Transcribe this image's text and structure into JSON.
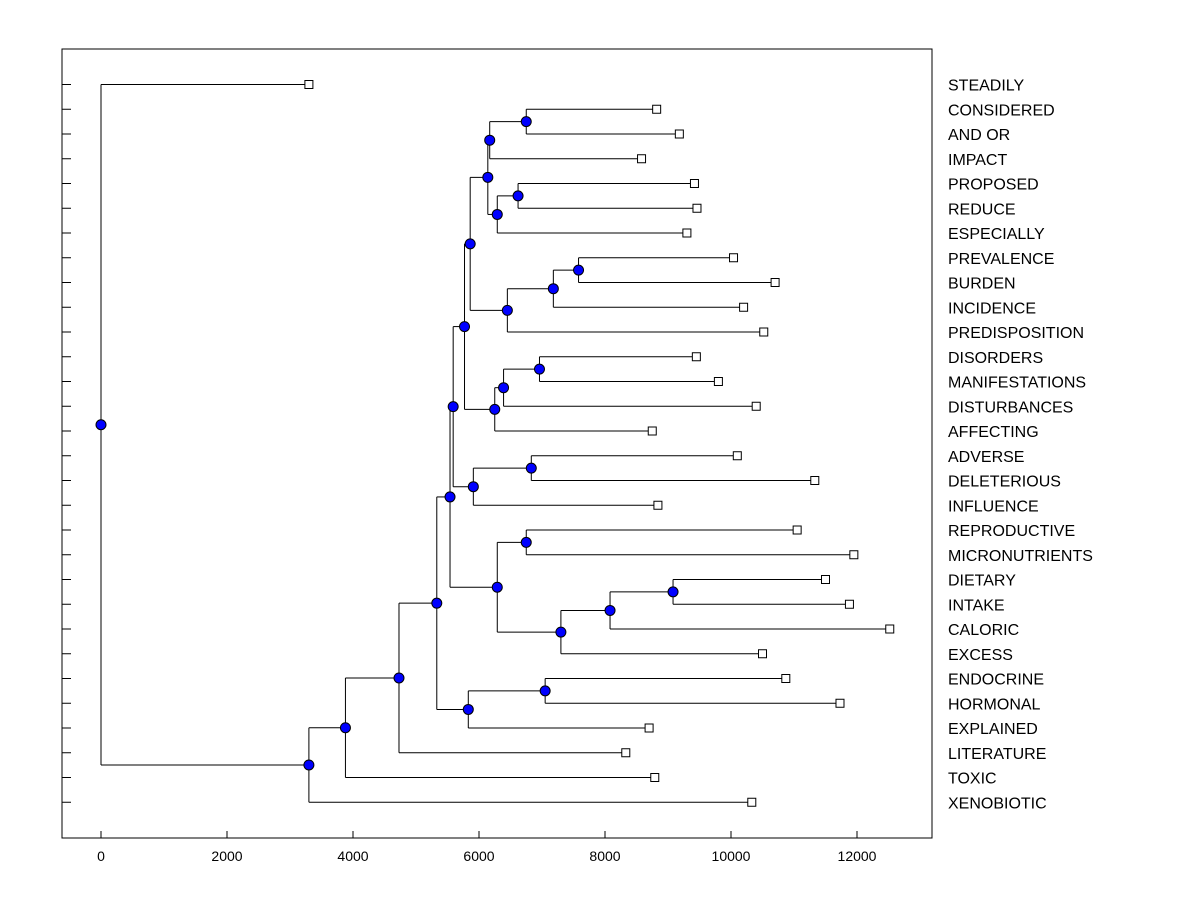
{
  "chart_data": {
    "type": "dendrogram",
    "title": "",
    "xlabel": "",
    "ylabel": "",
    "xlim": [
      -600,
      13100
    ],
    "xticks": [
      0,
      2000,
      4000,
      6000,
      8000,
      10000,
      12000
    ],
    "colors": {
      "node": "#0000ff",
      "line": "#000000",
      "leaf_marker": "#ffffff"
    },
    "leaves": [
      {
        "label": "STEADILY",
        "value": 3300
      },
      {
        "label": "CONSIDERED",
        "value": 8820
      },
      {
        "label": "AND OR",
        "value": 9180
      },
      {
        "label": "IMPACT",
        "value": 8580
      },
      {
        "label": "PROPOSED",
        "value": 9420
      },
      {
        "label": "REDUCE",
        "value": 9460
      },
      {
        "label": "ESPECIALLY",
        "value": 9300
      },
      {
        "label": "PREVALENCE",
        "value": 10040
      },
      {
        "label": "BURDEN",
        "value": 10700
      },
      {
        "label": "INCIDENCE",
        "value": 10200
      },
      {
        "label": "PREDISPOSITION",
        "value": 10520
      },
      {
        "label": "DISORDERS",
        "value": 9450
      },
      {
        "label": "MANIFESTATIONS",
        "value": 9800
      },
      {
        "label": "DISTURBANCES",
        "value": 10400
      },
      {
        "label": "AFFECTING",
        "value": 8750
      },
      {
        "label": "ADVERSE",
        "value": 10100
      },
      {
        "label": "DELETERIOUS",
        "value": 11330
      },
      {
        "label": "INFLUENCE",
        "value": 8840
      },
      {
        "label": "REPRODUCTIVE",
        "value": 11050
      },
      {
        "label": "MICRONUTRIENTS",
        "value": 11950
      },
      {
        "label": "DIETARY",
        "value": 11500
      },
      {
        "label": "INTAKE",
        "value": 11880
      },
      {
        "label": "CALORIC",
        "value": 12520
      },
      {
        "label": "EXCESS",
        "value": 10500
      },
      {
        "label": "ENDOCRINE",
        "value": 10870
      },
      {
        "label": "HORMONAL",
        "value": 11730
      },
      {
        "label": "EXPLAINED",
        "value": 8700
      },
      {
        "label": "LITERATURE",
        "value": 8330
      },
      {
        "label": "TOXIC",
        "value": 8790
      },
      {
        "label": "XENOBIOTIC",
        "value": 10330
      }
    ],
    "merges": [
      {
        "id": "n1",
        "value": 6750,
        "children": [
          "CONSIDERED",
          "AND OR"
        ]
      },
      {
        "id": "n2",
        "value": 6170,
        "children": [
          "n1",
          "IMPACT"
        ]
      },
      {
        "id": "n3",
        "value": 6620,
        "children": [
          "PROPOSED",
          "REDUCE"
        ]
      },
      {
        "id": "n4",
        "value": 6290,
        "children": [
          "n3",
          "ESPECIALLY"
        ]
      },
      {
        "id": "n5",
        "value": 6140,
        "children": [
          "n2",
          "n4"
        ]
      },
      {
        "id": "n6",
        "value": 7580,
        "children": [
          "PREVALENCE",
          "BURDEN"
        ]
      },
      {
        "id": "n7",
        "value": 7180,
        "children": [
          "n6",
          "INCIDENCE"
        ]
      },
      {
        "id": "n8",
        "value": 6450,
        "children": [
          "n7",
          "PREDISPOSITION"
        ]
      },
      {
        "id": "n9",
        "value": 5860,
        "children": [
          "n5",
          "n8"
        ]
      },
      {
        "id": "n10",
        "value": 6960,
        "children": [
          "DISORDERS",
          "MANIFESTATIONS"
        ]
      },
      {
        "id": "n11",
        "value": 6390,
        "children": [
          "n10",
          "DISTURBANCES"
        ]
      },
      {
        "id": "n12",
        "value": 6250,
        "children": [
          "n11",
          "AFFECTING"
        ]
      },
      {
        "id": "n13",
        "value": 5770,
        "children": [
          "n9",
          "n12"
        ]
      },
      {
        "id": "n14",
        "value": 6830,
        "children": [
          "ADVERSE",
          "DELETERIOUS"
        ]
      },
      {
        "id": "n15",
        "value": 5910,
        "children": [
          "n14",
          "INFLUENCE"
        ]
      },
      {
        "id": "n16",
        "value": 5590,
        "children": [
          "n13",
          "n15"
        ]
      },
      {
        "id": "n17",
        "value": 6750,
        "children": [
          "REPRODUCTIVE",
          "MICRONUTRIENTS"
        ]
      },
      {
        "id": "n18",
        "value": 9080,
        "children": [
          "DIETARY",
          "INTAKE"
        ]
      },
      {
        "id": "n19",
        "value": 8080,
        "children": [
          "n18",
          "CALORIC"
        ]
      },
      {
        "id": "n20",
        "value": 7300,
        "children": [
          "n19",
          "EXCESS"
        ]
      },
      {
        "id": "n21",
        "value": 6290,
        "children": [
          "n17",
          "n20"
        ]
      },
      {
        "id": "n22",
        "value": 5540,
        "children": [
          "n16",
          "n21"
        ]
      },
      {
        "id": "n23",
        "value": 7050,
        "children": [
          "ENDOCRINE",
          "HORMONAL"
        ]
      },
      {
        "id": "n24",
        "value": 5830,
        "children": [
          "n23",
          "EXPLAINED"
        ]
      },
      {
        "id": "n25",
        "value": 5330,
        "children": [
          "n22",
          "n24"
        ]
      },
      {
        "id": "n26",
        "value": 4730,
        "children": [
          "n25",
          "LITERATURE"
        ]
      },
      {
        "id": "n27",
        "value": 3880,
        "children": [
          "n26",
          "TOXIC"
        ]
      },
      {
        "id": "n28",
        "value": 3300,
        "children": [
          "n27",
          "XENOBIOTIC"
        ]
      },
      {
        "id": "n29",
        "value": 0,
        "children": [
          "STEADILY",
          "n28"
        ]
      }
    ]
  }
}
